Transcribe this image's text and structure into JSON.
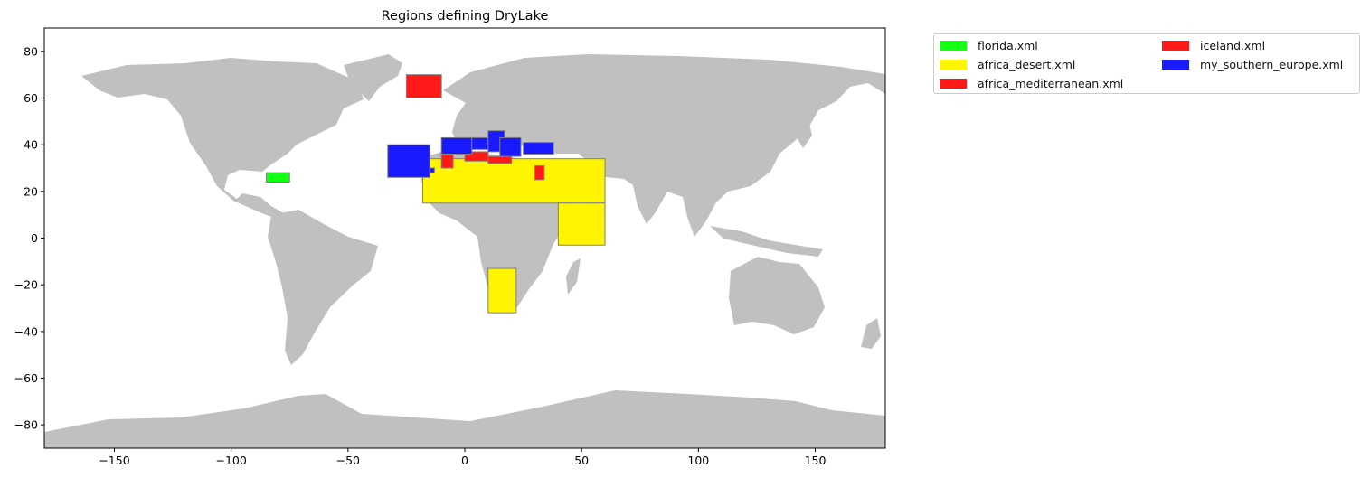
{
  "title": "Regions defining DryLake",
  "map": {
    "land_color": "#c0c0c0",
    "xlim": [
      -180,
      180
    ],
    "ylim": [
      -90,
      90
    ],
    "x_ticks": [
      -150,
      -100,
      -50,
      0,
      50,
      100,
      150
    ],
    "y_ticks": [
      -80,
      -60,
      -40,
      -20,
      0,
      20,
      40,
      60,
      80
    ]
  },
  "legend": [
    {
      "label": "florida.xml",
      "color": "#13ff13"
    },
    {
      "label": "africa_desert.xml",
      "color": "#fff500"
    },
    {
      "label": "africa_mediterranean.xml",
      "color": "#ff1a1a"
    },
    {
      "label": "iceland.xml",
      "color": "#ff1a1a"
    },
    {
      "label": "my_southern_europe.xml",
      "color": "#1a1aff"
    }
  ],
  "regions": [
    {
      "file": "florida.xml",
      "color": "#13ff13",
      "boxes": [
        [
          -85,
          28,
          -75,
          24
        ]
      ]
    },
    {
      "file": "iceland.xml",
      "color": "#ff1a1a",
      "boxes": [
        [
          -25,
          70,
          -10,
          60
        ]
      ]
    },
    {
      "file": "africa_desert.xml",
      "color": "#fff500",
      "boxes": [
        [
          -18,
          34,
          60,
          15
        ],
        [
          40,
          15,
          60,
          -3
        ],
        [
          10,
          -13,
          22,
          -32
        ]
      ]
    },
    {
      "file": "africa_mediterranean.xml",
      "color": "#ff1a1a",
      "boxes": [
        [
          -10,
          37,
          -5,
          30
        ],
        [
          0,
          37,
          10,
          33
        ],
        [
          10,
          35,
          20,
          32
        ],
        [
          30,
          31,
          34,
          25
        ]
      ]
    },
    {
      "file": "my_southern_europe.xml",
      "color": "#1a1aff",
      "boxes": [
        [
          -33,
          40,
          -15,
          26
        ],
        [
          -15,
          30,
          -13,
          28
        ],
        [
          -10,
          43,
          3,
          36
        ],
        [
          3,
          43,
          10,
          38
        ],
        [
          10,
          46,
          17,
          37
        ],
        [
          15,
          43,
          24,
          35
        ],
        [
          25,
          41,
          38,
          36
        ]
      ]
    }
  ]
}
